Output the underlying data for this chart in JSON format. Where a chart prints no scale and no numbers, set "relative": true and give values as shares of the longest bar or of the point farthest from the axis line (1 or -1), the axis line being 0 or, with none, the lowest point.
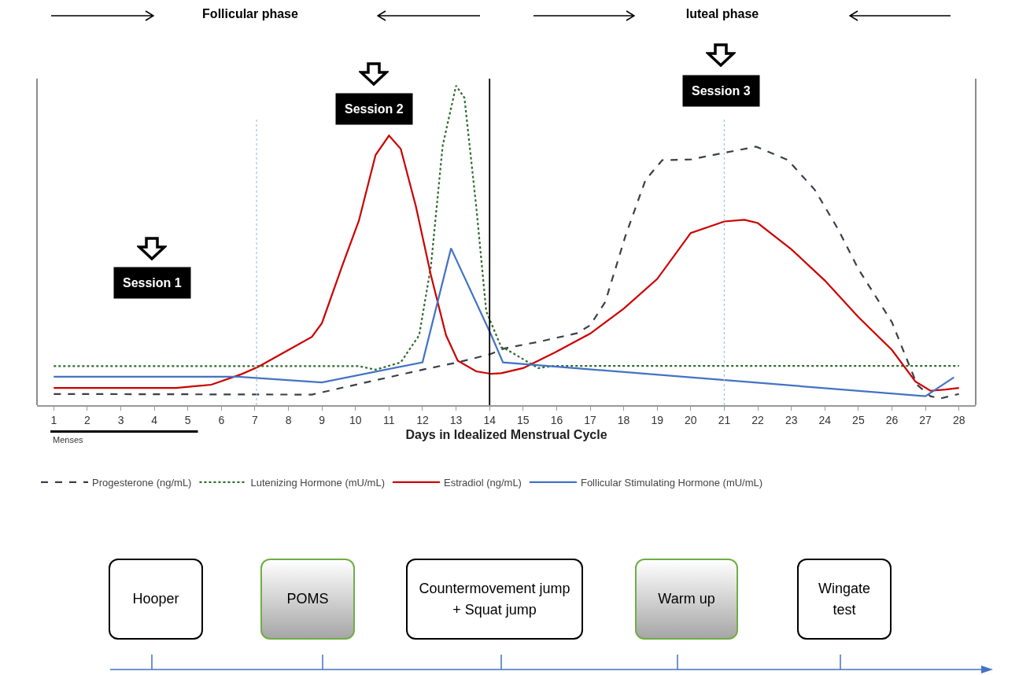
{
  "chart_data": {
    "type": "line",
    "relative": true,
    "xlabel": "Days in Idealized Menstrual Cycle",
    "xlim": [
      0.5,
      28.5
    ],
    "xticks": [
      1,
      2,
      3,
      4,
      5,
      6,
      7,
      8,
      9,
      10,
      11,
      12,
      13,
      14,
      15,
      16,
      17,
      18,
      19,
      20,
      21,
      22,
      23,
      24,
      25,
      26,
      27,
      28
    ],
    "tick_labels": "x",
    "grid": false,
    "legend": "bottom",
    "series": [
      {
        "name": "Progesterone (ng/mL)",
        "color": "#3a3f4a",
        "line_style": "dashed",
        "x": [
          1,
          8.7,
          9.2,
          12,
          13.05,
          14,
          14.45,
          15.45,
          16.6,
          17,
          17.45,
          18.05,
          18.65,
          19.15,
          20,
          21,
          21.95,
          22.9,
          23.7,
          24.4,
          25,
          26,
          26.75,
          27.15,
          27.45,
          28
        ],
        "values": [
          0.035,
          0.033,
          0.045,
          0.111,
          0.134,
          0.159,
          0.178,
          0.198,
          0.225,
          0.25,
          0.323,
          0.529,
          0.705,
          0.767,
          0.769,
          0.79,
          0.809,
          0.767,
          0.674,
          0.55,
          0.426,
          0.26,
          0.064,
          0.028,
          0.021,
          0.035
        ]
      },
      {
        "name": "Lutenizing Hormone (mU/mL)",
        "color": "#2e6b2e",
        "line_style": "dotted",
        "x": [
          1,
          10.1,
          10.6,
          11.35,
          11.9,
          12.25,
          12.6,
          13,
          13.25,
          13.6,
          13.9,
          14.35,
          14.45,
          15.45,
          15.95,
          28
        ],
        "values": [
          0.122,
          0.122,
          0.111,
          0.134,
          0.219,
          0.435,
          0.812,
          1,
          0.962,
          0.623,
          0.294,
          0.181,
          0.178,
          0.116,
          0.123,
          0.123
        ]
      },
      {
        "name": "Estradiol (ng/mL)",
        "color": "#cc0000",
        "line_style": "solid",
        "x": [
          1,
          4.65,
          5.7,
          6.6,
          7.1,
          7.9,
          8.7,
          9,
          9.6,
          10.1,
          10.6,
          11,
          11.35,
          11.8,
          12.25,
          12.7,
          13.05,
          13.6,
          14.05,
          14.35,
          15,
          15.95,
          17,
          18,
          19,
          20,
          21,
          21.6,
          22,
          23,
          24,
          25,
          26,
          26.7,
          27.15,
          27.6,
          28
        ],
        "values": [
          0.054,
          0.054,
          0.064,
          0.097,
          0.12,
          0.167,
          0.214,
          0.257,
          0.435,
          0.577,
          0.783,
          0.844,
          0.802,
          0.623,
          0.407,
          0.219,
          0.139,
          0.106,
          0.098,
          0.1,
          0.116,
          0.165,
          0.224,
          0.302,
          0.395,
          0.539,
          0.575,
          0.58,
          0.57,
          0.488,
          0.39,
          0.276,
          0.173,
          0.074,
          0.045,
          0.049,
          0.054
        ]
      },
      {
        "name": "Follicular Stimulating Hormone (mU/mL)",
        "color": "#4472c4",
        "line_style": "solid",
        "x": [
          1,
          6.5,
          9,
          12,
          12.85,
          14.05,
          14.4,
          27,
          27.85
        ],
        "values": [
          0.089,
          0.089,
          0.071,
          0.134,
          0.491,
          0.219,
          0.134,
          0.028,
          0.087
        ]
      }
    ],
    "ref_lines": [
      {
        "axis": "x",
        "value": 7.05,
        "color": "#9dc3e6",
        "line_style": "dotted"
      },
      {
        "axis": "x",
        "value": 14,
        "color": "#000000",
        "line_style": "solid"
      },
      {
        "axis": "x",
        "value": 21,
        "color": "#9dc3e6",
        "line_style": "dotted"
      }
    ],
    "annotations": [
      "Follicular phase",
      "luteal phase",
      "Session 1",
      "Session 2",
      "Session 3",
      "Menses",
      "Hooper",
      "POMS",
      "Countermovement jump + Squat jump",
      "Warm up",
      "Wingate test"
    ]
  }
}
